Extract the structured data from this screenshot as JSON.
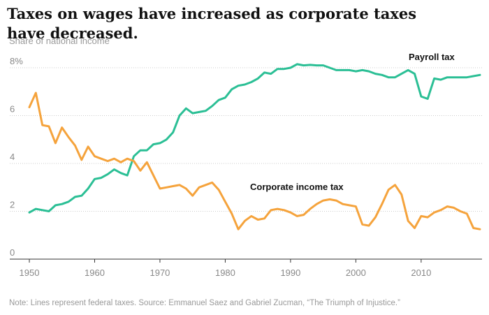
{
  "chart_data": {
    "type": "line",
    "title": "Taxes on wages have increased as corporate taxes have decreased.",
    "ylabel": "Share of national income",
    "xlabel": "",
    "xlim": [
      1950,
      2019
    ],
    "ylim": [
      0,
      8
    ],
    "x_ticks": [
      "1950",
      "1960",
      "1970",
      "1980",
      "1990",
      "2000",
      "2010"
    ],
    "y_ticks": [
      {
        "value": 0,
        "label": "0"
      },
      {
        "value": 2,
        "label": "2"
      },
      {
        "value": 4,
        "label": "4"
      },
      {
        "value": 6,
        "label": "6"
      },
      {
        "value": 8,
        "label": "8%"
      }
    ],
    "grid": "horizontal dotted",
    "series": [
      {
        "name": "Payroll tax",
        "color": "#2bbf95",
        "points": [
          [
            1950,
            1.95
          ],
          [
            1951,
            2.1
          ],
          [
            1952,
            2.05
          ],
          [
            1953,
            2.0
          ],
          [
            1954,
            2.25
          ],
          [
            1955,
            2.3
          ],
          [
            1956,
            2.4
          ],
          [
            1957,
            2.6
          ],
          [
            1958,
            2.65
          ],
          [
            1959,
            2.95
          ],
          [
            1960,
            3.35
          ],
          [
            1961,
            3.4
          ],
          [
            1962,
            3.55
          ],
          [
            1963,
            3.75
          ],
          [
            1964,
            3.6
          ],
          [
            1965,
            3.5
          ],
          [
            1966,
            4.3
          ],
          [
            1967,
            4.55
          ],
          [
            1968,
            4.55
          ],
          [
            1969,
            4.8
          ],
          [
            1970,
            4.85
          ],
          [
            1971,
            5.0
          ],
          [
            1972,
            5.3
          ],
          [
            1973,
            6.0
          ],
          [
            1974,
            6.3
          ],
          [
            1975,
            6.1
          ],
          [
            1976,
            6.15
          ],
          [
            1977,
            6.2
          ],
          [
            1978,
            6.4
          ],
          [
            1979,
            6.65
          ],
          [
            1980,
            6.75
          ],
          [
            1981,
            7.1
          ],
          [
            1982,
            7.25
          ],
          [
            1983,
            7.3
          ],
          [
            1984,
            7.4
          ],
          [
            1985,
            7.55
          ],
          [
            1986,
            7.8
          ],
          [
            1987,
            7.75
          ],
          [
            1988,
            7.95
          ],
          [
            1989,
            7.95
          ],
          [
            1990,
            8.0
          ],
          [
            1991,
            8.15
          ],
          [
            1992,
            8.1
          ],
          [
            1993,
            8.12
          ],
          [
            1994,
            8.1
          ],
          [
            1995,
            8.1
          ],
          [
            1996,
            8.0
          ],
          [
            1997,
            7.9
          ],
          [
            1998,
            7.9
          ],
          [
            1999,
            7.9
          ],
          [
            2000,
            7.85
          ],
          [
            2001,
            7.9
          ],
          [
            2002,
            7.85
          ],
          [
            2003,
            7.75
          ],
          [
            2004,
            7.7
          ],
          [
            2005,
            7.6
          ],
          [
            2006,
            7.6
          ],
          [
            2007,
            7.75
          ],
          [
            2008,
            7.9
          ],
          [
            2009,
            7.75
          ],
          [
            2010,
            6.8
          ],
          [
            2011,
            6.7
          ],
          [
            2012,
            7.55
          ],
          [
            2013,
            7.5
          ],
          [
            2014,
            7.6
          ],
          [
            2015,
            7.6
          ],
          [
            2016,
            7.6
          ],
          [
            2017,
            7.6
          ],
          [
            2018,
            7.65
          ],
          [
            2019,
            7.7
          ]
        ]
      },
      {
        "name": "Corporate income tax",
        "color": "#f5a33c",
        "points": [
          [
            1950,
            6.35
          ],
          [
            1951,
            6.95
          ],
          [
            1952,
            5.6
          ],
          [
            1953,
            5.55
          ],
          [
            1954,
            4.85
          ],
          [
            1955,
            5.5
          ],
          [
            1956,
            5.1
          ],
          [
            1957,
            4.75
          ],
          [
            1958,
            4.15
          ],
          [
            1959,
            4.7
          ],
          [
            1960,
            4.3
          ],
          [
            1961,
            4.2
          ],
          [
            1962,
            4.1
          ],
          [
            1963,
            4.2
          ],
          [
            1964,
            4.05
          ],
          [
            1965,
            4.2
          ],
          [
            1966,
            4.1
          ],
          [
            1967,
            3.7
          ],
          [
            1968,
            4.05
          ],
          [
            1969,
            3.5
          ],
          [
            1970,
            2.95
          ],
          [
            1971,
            3.0
          ],
          [
            1972,
            3.05
          ],
          [
            1973,
            3.1
          ],
          [
            1974,
            2.95
          ],
          [
            1975,
            2.65
          ],
          [
            1976,
            3.0
          ],
          [
            1977,
            3.1
          ],
          [
            1978,
            3.2
          ],
          [
            1979,
            2.9
          ],
          [
            1980,
            2.4
          ],
          [
            1981,
            1.9
          ],
          [
            1982,
            1.25
          ],
          [
            1983,
            1.6
          ],
          [
            1984,
            1.8
          ],
          [
            1985,
            1.65
          ],
          [
            1986,
            1.7
          ],
          [
            1987,
            2.05
          ],
          [
            1988,
            2.1
          ],
          [
            1989,
            2.05
          ],
          [
            1990,
            1.95
          ],
          [
            1991,
            1.8
          ],
          [
            1992,
            1.85
          ],
          [
            1993,
            2.1
          ],
          [
            1994,
            2.3
          ],
          [
            1995,
            2.45
          ],
          [
            1996,
            2.5
          ],
          [
            1997,
            2.45
          ],
          [
            1998,
            2.3
          ],
          [
            1999,
            2.25
          ],
          [
            2000,
            2.2
          ],
          [
            2001,
            1.45
          ],
          [
            2002,
            1.4
          ],
          [
            2003,
            1.75
          ],
          [
            2004,
            2.3
          ],
          [
            2005,
            2.9
          ],
          [
            2006,
            3.1
          ],
          [
            2007,
            2.7
          ],
          [
            2008,
            1.6
          ],
          [
            2009,
            1.3
          ],
          [
            2010,
            1.8
          ],
          [
            2011,
            1.75
          ],
          [
            2012,
            1.95
          ],
          [
            2013,
            2.05
          ],
          [
            2014,
            2.2
          ],
          [
            2015,
            2.15
          ],
          [
            2016,
            2.0
          ],
          [
            2017,
            1.9
          ],
          [
            2018,
            1.3
          ],
          [
            2019,
            1.25
          ]
        ]
      }
    ],
    "annotations": [
      "Payroll tax",
      "Corporate income tax"
    ],
    "note": "Note: Lines represent federal taxes. Source: Emmanuel Saez and Gabriel Zucman, “The Triumph of Injustice.”"
  }
}
